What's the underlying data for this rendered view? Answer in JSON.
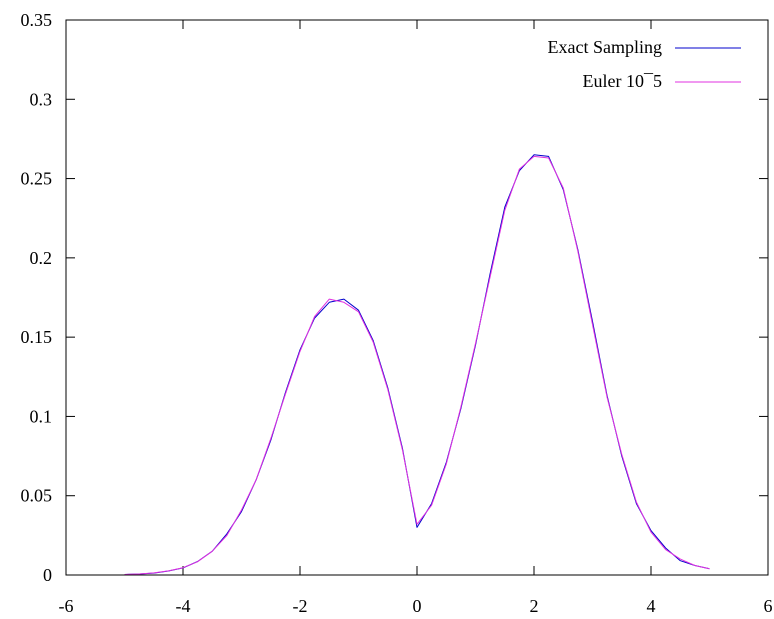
{
  "chart_data": {
    "type": "line",
    "xlim": [
      -6,
      6
    ],
    "ylim": [
      0,
      0.35
    ],
    "xticks": [
      -6,
      -4,
      -2,
      0,
      2,
      4,
      6
    ],
    "xtick_labels": [
      "-6",
      "-4",
      "-2",
      "0",
      "2",
      "4",
      "6"
    ],
    "yticks": [
      0,
      0.05,
      0.1,
      0.15,
      0.2,
      0.25,
      0.3,
      0.35
    ],
    "ytick_labels": [
      "0",
      "0.05",
      "0.1",
      "0.15",
      "0.2",
      "0.25",
      "0.3",
      "0.35"
    ],
    "grid": false,
    "legend_position": "top-right",
    "x": [
      -5.0,
      -4.75,
      -4.5,
      -4.25,
      -4.0,
      -3.75,
      -3.5,
      -3.25,
      -3.0,
      -2.75,
      -2.5,
      -2.25,
      -2.0,
      -1.75,
      -1.5,
      -1.25,
      -1.0,
      -0.75,
      -0.5,
      -0.25,
      0.0,
      0.25,
      0.5,
      0.75,
      1.0,
      1.25,
      1.5,
      1.75,
      2.0,
      2.25,
      2.5,
      2.75,
      3.0,
      3.25,
      3.5,
      3.75,
      4.0,
      4.25,
      4.5,
      4.75,
      5.0
    ],
    "series": [
      {
        "name": "Exact Sampling",
        "color": "#0000cc",
        "values": [
          0.0003,
          0.0006,
          0.0012,
          0.0025,
          0.0045,
          0.0085,
          0.015,
          0.026,
          0.04,
          0.06,
          0.085,
          0.115,
          0.142,
          0.162,
          0.172,
          0.174,
          0.167,
          0.148,
          0.118,
          0.08,
          0.03,
          0.045,
          0.071,
          0.105,
          0.145,
          0.19,
          0.232,
          0.255,
          0.265,
          0.264,
          0.243,
          0.205,
          0.16,
          0.113,
          0.075,
          0.045,
          0.028,
          0.017,
          0.009,
          0.006,
          0.004
        ]
      },
      {
        "name": "Euler 10^-5",
        "color": "#e030e0",
        "values": [
          0.0003,
          0.0006,
          0.0013,
          0.0026,
          0.0046,
          0.0084,
          0.015,
          0.025,
          0.041,
          0.06,
          0.086,
          0.114,
          0.141,
          0.163,
          0.174,
          0.172,
          0.166,
          0.147,
          0.117,
          0.079,
          0.032,
          0.044,
          0.07,
          0.106,
          0.146,
          0.188,
          0.23,
          0.256,
          0.264,
          0.263,
          0.244,
          0.204,
          0.158,
          0.112,
          0.076,
          0.046,
          0.027,
          0.016,
          0.01,
          0.006,
          0.004
        ]
      }
    ]
  },
  "legend": {
    "items": [
      "Exact Sampling",
      "Euler 10¯5"
    ]
  }
}
